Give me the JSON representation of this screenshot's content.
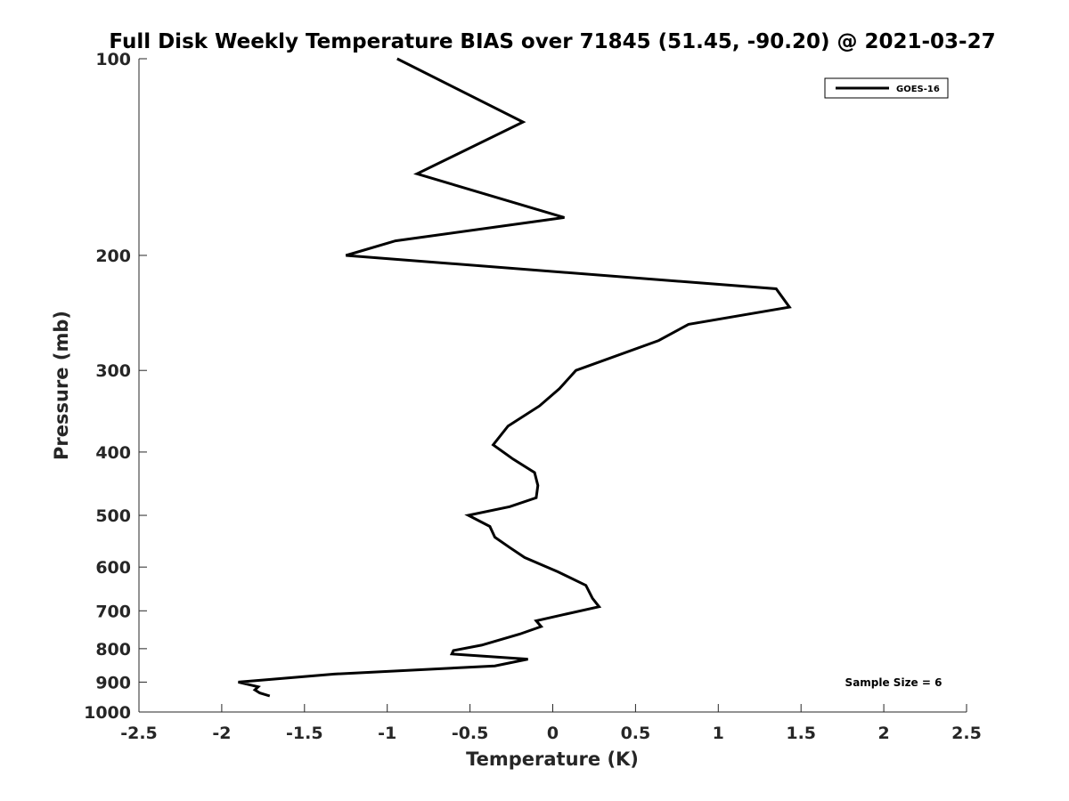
{
  "chart_data": {
    "type": "line",
    "title": "Full Disk Weekly Temperature BIAS over 71845 (51.45, -90.20) @ 2021-03-27",
    "xlabel": "Temperature (K)",
    "ylabel": "Pressure (mb)",
    "xlim": [
      -2.5,
      2.5
    ],
    "ylim": [
      100,
      1000
    ],
    "yscale": "log",
    "yreversed": true,
    "x_ticks": [
      -2.5,
      -2,
      -1.5,
      -1,
      -0.5,
      0,
      0.5,
      1,
      1.5,
      2,
      2.5
    ],
    "x_tick_labels": [
      "-2.5",
      "-2",
      "-1.5",
      "-1",
      "-0.5",
      "0",
      "0.5",
      "1",
      "1.5",
      "2",
      "2.5"
    ],
    "y_ticks": [
      100,
      200,
      300,
      400,
      500,
      600,
      700,
      800,
      900,
      1000
    ],
    "y_tick_labels": [
      "100",
      "200",
      "300",
      "400",
      "500",
      "600",
      "700",
      "800",
      "900",
      "1000"
    ],
    "grid": false,
    "legend_position": "top-right",
    "series": [
      {
        "name": "GOES-16",
        "color": "#000000",
        "points": [
          {
            "x": -0.94,
            "p": 100
          },
          {
            "x": -0.18,
            "p": 125
          },
          {
            "x": -0.82,
            "p": 150
          },
          {
            "x": 0.07,
            "p": 175
          },
          {
            "x": -0.95,
            "p": 190
          },
          {
            "x": -1.25,
            "p": 200
          },
          {
            "x": 1.35,
            "p": 225
          },
          {
            "x": 1.43,
            "p": 240
          },
          {
            "x": 0.82,
            "p": 255
          },
          {
            "x": 0.64,
            "p": 270
          },
          {
            "x": 0.14,
            "p": 300
          },
          {
            "x": 0.04,
            "p": 320
          },
          {
            "x": -0.08,
            "p": 340
          },
          {
            "x": -0.27,
            "p": 365
          },
          {
            "x": -0.36,
            "p": 390
          },
          {
            "x": -0.24,
            "p": 410
          },
          {
            "x": -0.11,
            "p": 430
          },
          {
            "x": -0.09,
            "p": 450
          },
          {
            "x": -0.1,
            "p": 470
          },
          {
            "x": -0.26,
            "p": 485
          },
          {
            "x": -0.51,
            "p": 500
          },
          {
            "x": -0.38,
            "p": 520
          },
          {
            "x": -0.35,
            "p": 540
          },
          {
            "x": -0.26,
            "p": 560
          },
          {
            "x": -0.17,
            "p": 580
          },
          {
            "x": 0.03,
            "p": 610
          },
          {
            "x": 0.2,
            "p": 640
          },
          {
            "x": 0.24,
            "p": 670
          },
          {
            "x": 0.28,
            "p": 690
          },
          {
            "x": 0.06,
            "p": 710
          },
          {
            "x": -0.1,
            "p": 725
          },
          {
            "x": -0.07,
            "p": 740
          },
          {
            "x": -0.2,
            "p": 760
          },
          {
            "x": -0.43,
            "p": 790
          },
          {
            "x": -0.6,
            "p": 805
          },
          {
            "x": -0.61,
            "p": 815
          },
          {
            "x": -0.15,
            "p": 830
          },
          {
            "x": -0.35,
            "p": 850
          },
          {
            "x": -1.32,
            "p": 875
          },
          {
            "x": -1.9,
            "p": 900
          },
          {
            "x": -1.78,
            "p": 915
          },
          {
            "x": -1.8,
            "p": 925
          },
          {
            "x": -1.77,
            "p": 935
          },
          {
            "x": -1.71,
            "p": 945
          }
        ]
      }
    ],
    "annotations": [
      "Sample Size = 6"
    ]
  }
}
